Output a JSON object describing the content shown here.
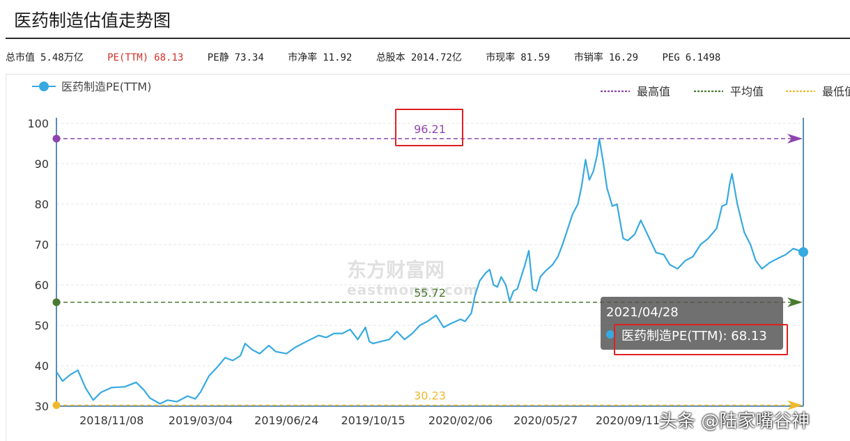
{
  "page_title": "医药制造估值走势图",
  "stats": [
    {
      "label": "总市值",
      "value": "5.48万亿",
      "highlight": false
    },
    {
      "label": "PE(TTM)",
      "value": "68.13",
      "highlight": true
    },
    {
      "label": "PE静",
      "value": "73.34",
      "highlight": false
    },
    {
      "label": "市净率",
      "value": "11.92",
      "highlight": false
    },
    {
      "label": "总股本",
      "value": "2014.72亿",
      "highlight": false
    },
    {
      "label": "市现率",
      "value": "81.59",
      "highlight": false
    },
    {
      "label": "市销率",
      "value": "16.29",
      "highlight": false
    },
    {
      "label": "PEG",
      "value": "6.1498",
      "highlight": false
    }
  ],
  "tooltip": {
    "date": "2021/04/28",
    "series": "医药制造PE(TTM)",
    "value": "68.13"
  },
  "watermark": {
    "logo": "东方财富网",
    "logo_sub": "eastmoney.com",
    "author": "头条 @陆家嘴谷神"
  },
  "colors": {
    "series": "#36a9e1",
    "max": "#8e44ad",
    "avg": "#4a7a30",
    "min": "#f0b92d",
    "axis": "#5b8db5",
    "highlight_red": "#d0302a"
  },
  "chart_data": {
    "type": "line",
    "series_name": "医药制造PE(TTM)",
    "legend": [
      "医药制造PE(TTM)",
      "最高值",
      "平均值",
      "最低值"
    ],
    "legend_placement": "top",
    "ylim": [
      30,
      100
    ],
    "yticks": [
      100,
      90,
      80,
      70,
      60,
      50,
      40,
      30
    ],
    "xticks": [
      "2018/11/08",
      "2019/03/04",
      "2019/06/24",
      "2019/10/15",
      "2020/02/06",
      "2020/05/27",
      "2020/09/11"
    ],
    "grid": "horizontal",
    "reference_lines": {
      "max": {
        "name": "最高值",
        "value": 96.21,
        "label": "96.21"
      },
      "avg": {
        "name": "平均值",
        "value": 55.72,
        "label": "55.72"
      },
      "min": {
        "name": "最低值",
        "value": 30.23,
        "label": "30.23"
      }
    },
    "x_start": "2018/08/28",
    "x_end": "2021/04/28",
    "points": [
      [
        "2018/08/28",
        38.5
      ],
      [
        "2018/09/05",
        36.2
      ],
      [
        "2018/09/15",
        37.8
      ],
      [
        "2018/09/25",
        38.9
      ],
      [
        "2018/10/05",
        34.5
      ],
      [
        "2018/10/15",
        31.5
      ],
      [
        "2018/10/25",
        33.4
      ],
      [
        "2018/11/08",
        34.6
      ],
      [
        "2018/11/25",
        34.8
      ],
      [
        "2018/12/10",
        35.9
      ],
      [
        "2018/12/20",
        34.0
      ],
      [
        "2018/12/28",
        32.0
      ],
      [
        "2019/01/10",
        30.6
      ],
      [
        "2019/01/20",
        31.5
      ],
      [
        "2019/02/01",
        31.1
      ],
      [
        "2019/02/15",
        32.5
      ],
      [
        "2019/02/25",
        31.8
      ],
      [
        "2019/03/04",
        33.5
      ],
      [
        "2019/03/15",
        37.5
      ],
      [
        "2019/03/25",
        39.5
      ],
      [
        "2019/04/05",
        42.0
      ],
      [
        "2019/04/15",
        41.3
      ],
      [
        "2019/04/25",
        42.5
      ],
      [
        "2019/05/01",
        45.5
      ],
      [
        "2019/05/10",
        44.0
      ],
      [
        "2019/05/20",
        43.0
      ],
      [
        "2019/06/01",
        45.0
      ],
      [
        "2019/06/10",
        43.5
      ],
      [
        "2019/06/24",
        43.0
      ],
      [
        "2019/07/05",
        44.5
      ],
      [
        "2019/07/20",
        46.0
      ],
      [
        "2019/08/05",
        47.5
      ],
      [
        "2019/08/15",
        47.0
      ],
      [
        "2019/08/25",
        48.0
      ],
      [
        "2019/09/05",
        48.0
      ],
      [
        "2019/09/15",
        49.0
      ],
      [
        "2019/09/25",
        46.5
      ],
      [
        "2019/10/05",
        49.5
      ],
      [
        "2019/10/10",
        46.0
      ],
      [
        "2019/10/15",
        45.5
      ],
      [
        "2019/10/25",
        46.0
      ],
      [
        "2019/11/05",
        46.5
      ],
      [
        "2019/11/15",
        48.5
      ],
      [
        "2019/11/25",
        46.5
      ],
      [
        "2019/12/05",
        48.0
      ],
      [
        "2019/12/15",
        50.0
      ],
      [
        "2019/12/25",
        51.0
      ],
      [
        "2020/01/05",
        52.5
      ],
      [
        "2020/01/15",
        49.5
      ],
      [
        "2020/01/25",
        50.5
      ],
      [
        "2020/02/06",
        51.5
      ],
      [
        "2020/02/12",
        51.0
      ],
      [
        "2020/02/20",
        53.0
      ],
      [
        "2020/02/25",
        57.5
      ],
      [
        "2020/03/02",
        61.0
      ],
      [
        "2020/03/10",
        63.0
      ],
      [
        "2020/03/15",
        63.8
      ],
      [
        "2020/03/20",
        60.0
      ],
      [
        "2020/03/25",
        59.5
      ],
      [
        "2020/03/30",
        62.0
      ],
      [
        "2020/04/05",
        60.0
      ],
      [
        "2020/04/10",
        56.0
      ],
      [
        "2020/04/15",
        58.5
      ],
      [
        "2020/04/20",
        59.0
      ],
      [
        "2020/04/25",
        62.0
      ],
      [
        "2020/04/30",
        65.0
      ],
      [
        "2020/05/05",
        68.5
      ],
      [
        "2020/05/10",
        59.0
      ],
      [
        "2020/05/15",
        58.5
      ],
      [
        "2020/05/20",
        62.0
      ],
      [
        "2020/05/27",
        63.5
      ],
      [
        "2020/06/05",
        65.0
      ],
      [
        "2020/06/12",
        67.0
      ],
      [
        "2020/06/18",
        70.0
      ],
      [
        "2020/06/25",
        74.0
      ],
      [
        "2020/07/01",
        77.5
      ],
      [
        "2020/07/08",
        80.0
      ],
      [
        "2020/07/13",
        84.5
      ],
      [
        "2020/07/18",
        91.0
      ],
      [
        "2020/07/23",
        86.0
      ],
      [
        "2020/07/28",
        88.0
      ],
      [
        "2020/08/02",
        92.0
      ],
      [
        "2020/08/05",
        96.21
      ],
      [
        "2020/08/10",
        90.5
      ],
      [
        "2020/08/15",
        84.0
      ],
      [
        "2020/08/22",
        79.5
      ],
      [
        "2020/08/28",
        80.0
      ],
      [
        "2020/09/05",
        71.5
      ],
      [
        "2020/09/11",
        71.0
      ],
      [
        "2020/09/20",
        72.5
      ],
      [
        "2020/09/28",
        76.0
      ],
      [
        "2020/10/08",
        72.0
      ],
      [
        "2020/10/18",
        68.0
      ],
      [
        "2020/10/28",
        67.5
      ],
      [
        "2020/11/05",
        65.0
      ],
      [
        "2020/11/15",
        64.0
      ],
      [
        "2020/11/25",
        66.0
      ],
      [
        "2020/12/05",
        67.0
      ],
      [
        "2020/12/15",
        70.0
      ],
      [
        "2020/12/25",
        71.5
      ],
      [
        "2021/01/05",
        74.0
      ],
      [
        "2021/01/12",
        79.5
      ],
      [
        "2021/01/18",
        80.0
      ],
      [
        "2021/01/22",
        85.0
      ],
      [
        "2021/01/25",
        87.5
      ],
      [
        "2021/02/01",
        80.0
      ],
      [
        "2021/02/10",
        73.0
      ],
      [
        "2021/02/18",
        70.0
      ],
      [
        "2021/02/25",
        66.0
      ],
      [
        "2021/03/05",
        64.0
      ],
      [
        "2021/03/15",
        65.5
      ],
      [
        "2021/03/25",
        66.5
      ],
      [
        "2021/04/05",
        67.5
      ],
      [
        "2021/04/15",
        69.0
      ],
      [
        "2021/04/28",
        68.13
      ]
    ]
  }
}
